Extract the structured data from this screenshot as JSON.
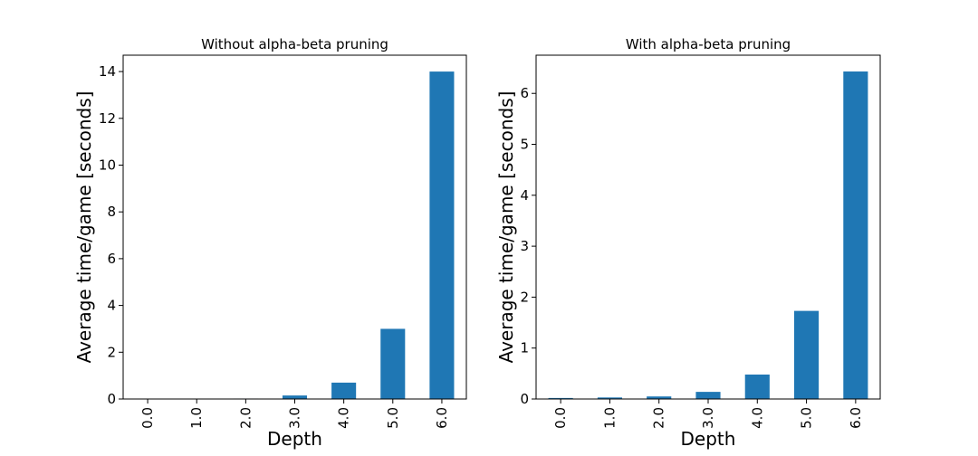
{
  "chart_data": [
    {
      "type": "bar",
      "title": "Without alpha-beta pruning",
      "xlabel": "Depth",
      "ylabel": "Average time/game [seconds]",
      "categories": [
        "0.0",
        "1.0",
        "2.0",
        "3.0",
        "4.0",
        "5.0",
        "6.0"
      ],
      "values": [
        0.01,
        0.01,
        0.02,
        0.15,
        0.7,
        3.0,
        14.0
      ],
      "ylim": [
        0,
        14.7
      ],
      "yticks": [
        0,
        2,
        4,
        6,
        8,
        10,
        12,
        14
      ],
      "bar_color": "#1f77b4",
      "grid": false
    },
    {
      "type": "bar",
      "title": "With alpha-beta pruning",
      "xlabel": "Depth",
      "ylabel": "Average time/game [seconds]",
      "categories": [
        "0.0",
        "1.0",
        "2.0",
        "3.0",
        "4.0",
        "5.0",
        "6.0"
      ],
      "values": [
        0.02,
        0.03,
        0.05,
        0.14,
        0.48,
        1.73,
        6.43
      ],
      "ylim": [
        0,
        6.75
      ],
      "yticks": [
        0,
        1,
        2,
        3,
        4,
        5,
        6
      ],
      "bar_color": "#1f77b4",
      "grid": false
    }
  ]
}
